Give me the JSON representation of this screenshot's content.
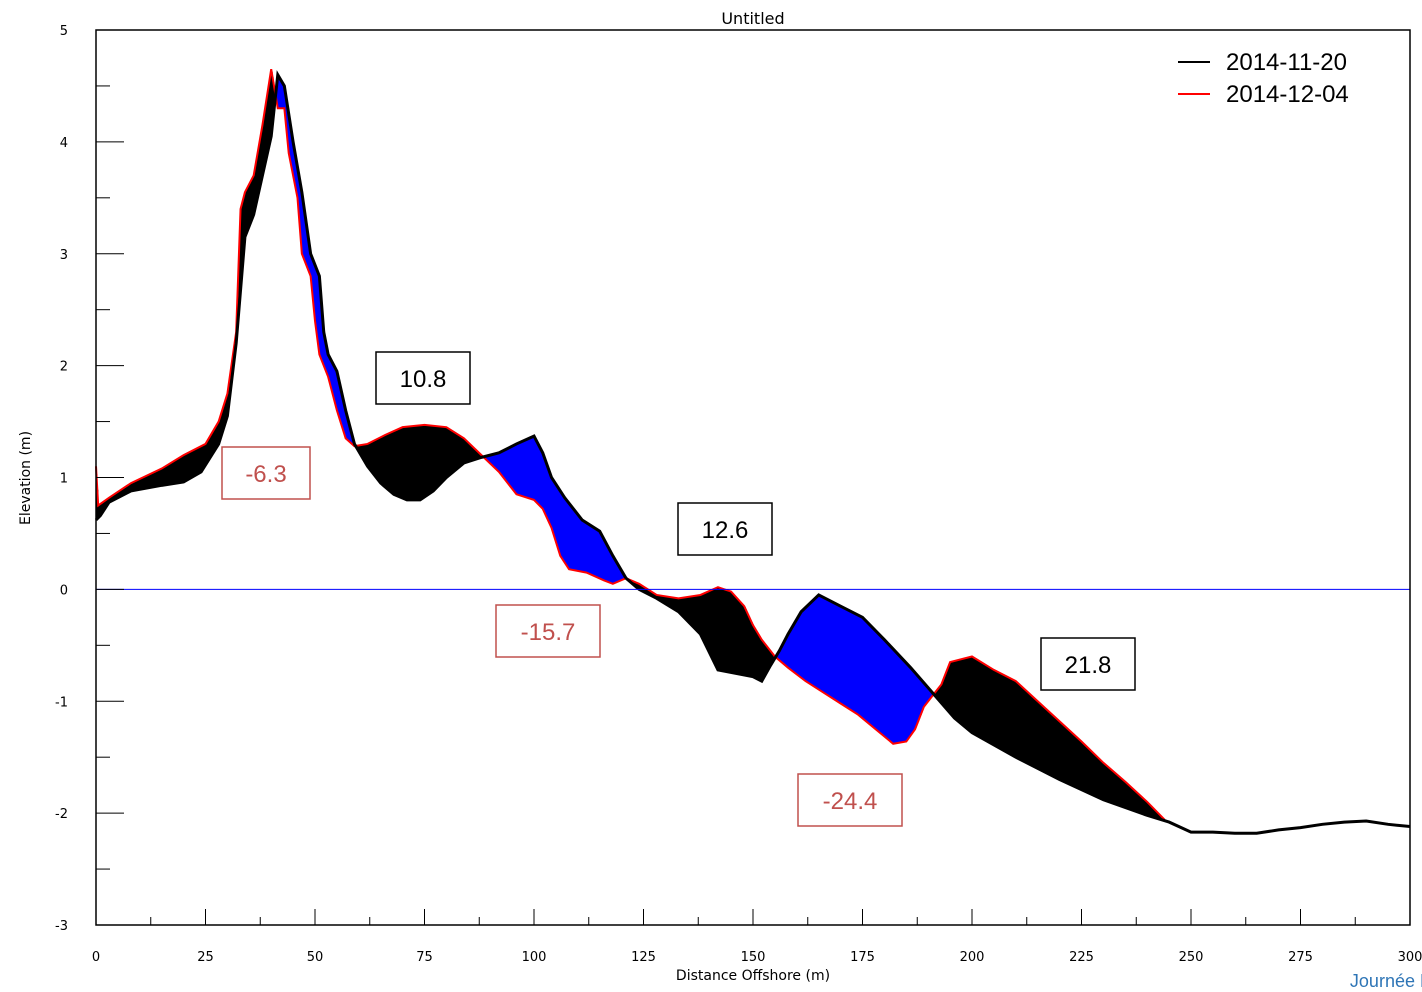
{
  "chart_data": {
    "type": "area",
    "title": "Untitled",
    "xlabel": "Distance Offshore (m)",
    "ylabel": "Elevation (m)",
    "xlim": [
      0,
      300
    ],
    "ylim": [
      -3,
      5
    ],
    "xticks": [
      "0",
      "25",
      "50",
      "75",
      "100",
      "125",
      "150",
      "175",
      "200",
      "225",
      "250",
      "275",
      "300"
    ],
    "yticks": [
      "5",
      "4",
      "3",
      "2",
      "1",
      "0",
      "-1",
      "-2",
      "-3"
    ],
    "legend_position": "top-right",
    "reference_line": {
      "y": 0,
      "color": "#0000ff"
    },
    "series": [
      {
        "name": "2014-11-20",
        "color": "#000000",
        "points": [
          [
            0,
            0.62
          ],
          [
            1,
            0.66
          ],
          [
            3,
            0.78
          ],
          [
            8,
            0.88
          ],
          [
            15,
            0.93
          ],
          [
            20,
            0.96
          ],
          [
            24,
            1.05
          ],
          [
            28,
            1.3
          ],
          [
            30,
            1.55
          ],
          [
            32,
            2.2
          ],
          [
            34,
            3.15
          ],
          [
            36,
            3.35
          ],
          [
            38,
            3.7
          ],
          [
            40,
            4.05
          ],
          [
            41.5,
            4.6
          ],
          [
            43,
            4.5
          ],
          [
            45,
            4.0
          ],
          [
            47,
            3.55
          ],
          [
            49,
            3.0
          ],
          [
            51,
            2.8
          ],
          [
            52,
            2.3
          ],
          [
            53,
            2.1
          ],
          [
            55,
            1.95
          ],
          [
            57,
            1.6
          ],
          [
            59,
            1.3
          ],
          [
            62,
            1.1
          ],
          [
            65,
            0.95
          ],
          [
            68,
            0.85
          ],
          [
            71,
            0.8
          ],
          [
            74,
            0.8
          ],
          [
            77,
            0.88
          ],
          [
            80,
            1.0
          ],
          [
            84,
            1.13
          ],
          [
            88,
            1.18
          ],
          [
            92,
            1.22
          ],
          [
            96,
            1.3
          ],
          [
            100,
            1.37
          ],
          [
            102,
            1.22
          ],
          [
            104,
            1.0
          ],
          [
            107,
            0.82
          ],
          [
            111,
            0.62
          ],
          [
            115,
            0.52
          ],
          [
            118,
            0.3
          ],
          [
            121,
            0.1
          ],
          [
            124,
            0.0
          ],
          [
            128,
            -0.08
          ],
          [
            133,
            -0.2
          ],
          [
            138,
            -0.4
          ],
          [
            142,
            -0.72
          ],
          [
            146,
            -0.75
          ],
          [
            150,
            -0.78
          ],
          [
            152,
            -0.82
          ],
          [
            154,
            -0.68
          ],
          [
            156,
            -0.55
          ],
          [
            158,
            -0.4
          ],
          [
            161,
            -0.2
          ],
          [
            165,
            -0.05
          ],
          [
            170,
            -0.15
          ],
          [
            175,
            -0.25
          ],
          [
            180,
            -0.45
          ],
          [
            186,
            -0.7
          ],
          [
            192,
            -0.97
          ],
          [
            196,
            -1.15
          ],
          [
            200,
            -1.28
          ],
          [
            210,
            -1.5
          ],
          [
            220,
            -1.7
          ],
          [
            230,
            -1.88
          ],
          [
            240,
            -2.02
          ],
          [
            245,
            -2.08
          ],
          [
            250,
            -2.17
          ],
          [
            255,
            -2.17
          ],
          [
            260,
            -2.18
          ],
          [
            265,
            -2.18
          ],
          [
            270,
            -2.15
          ],
          [
            275,
            -2.13
          ],
          [
            280,
            -2.1
          ],
          [
            285,
            -2.08
          ],
          [
            290,
            -2.07
          ],
          [
            295,
            -2.1
          ],
          [
            300,
            -2.12
          ]
        ]
      },
      {
        "name": "2014-12-04",
        "color": "#ff0000",
        "points": [
          [
            0,
            1.1
          ],
          [
            0.5,
            0.75
          ],
          [
            3,
            0.82
          ],
          [
            8,
            0.95
          ],
          [
            15,
            1.08
          ],
          [
            20,
            1.2
          ],
          [
            25,
            1.3
          ],
          [
            28,
            1.5
          ],
          [
            30,
            1.75
          ],
          [
            32,
            2.3
          ],
          [
            33,
            3.4
          ],
          [
            34,
            3.55
          ],
          [
            36,
            3.7
          ],
          [
            38,
            4.15
          ],
          [
            40,
            4.65
          ],
          [
            41.5,
            4.3
          ],
          [
            43,
            4.3
          ],
          [
            44,
            3.9
          ],
          [
            46,
            3.5
          ],
          [
            47,
            3.0
          ],
          [
            49,
            2.8
          ],
          [
            50,
            2.4
          ],
          [
            51,
            2.1
          ],
          [
            53,
            1.9
          ],
          [
            55,
            1.6
          ],
          [
            57,
            1.35
          ],
          [
            59,
            1.28
          ],
          [
            62,
            1.3
          ],
          [
            66,
            1.38
          ],
          [
            70,
            1.45
          ],
          [
            75,
            1.47
          ],
          [
            80,
            1.45
          ],
          [
            84,
            1.35
          ],
          [
            88,
            1.2
          ],
          [
            92,
            1.05
          ],
          [
            96,
            0.85
          ],
          [
            100,
            0.8
          ],
          [
            102,
            0.72
          ],
          [
            104,
            0.55
          ],
          [
            106,
            0.3
          ],
          [
            108,
            0.18
          ],
          [
            112,
            0.15
          ],
          [
            116,
            0.08
          ],
          [
            118,
            0.05
          ],
          [
            121,
            0.1
          ],
          [
            124,
            0.05
          ],
          [
            128,
            -0.05
          ],
          [
            133,
            -0.08
          ],
          [
            138,
            -0.05
          ],
          [
            142,
            0.02
          ],
          [
            145,
            -0.02
          ],
          [
            148,
            -0.15
          ],
          [
            150,
            -0.32
          ],
          [
            152,
            -0.45
          ],
          [
            155,
            -0.6
          ],
          [
            158,
            -0.7
          ],
          [
            162,
            -0.82
          ],
          [
            166,
            -0.92
          ],
          [
            170,
            -1.02
          ],
          [
            174,
            -1.12
          ],
          [
            178,
            -1.25
          ],
          [
            182,
            -1.38
          ],
          [
            185,
            -1.36
          ],
          [
            187,
            -1.25
          ],
          [
            189,
            -1.05
          ],
          [
            191,
            -0.95
          ],
          [
            193,
            -0.85
          ],
          [
            195,
            -0.65
          ],
          [
            200,
            -0.6
          ],
          [
            205,
            -0.72
          ],
          [
            210,
            -0.82
          ],
          [
            215,
            -1.0
          ],
          [
            220,
            -1.18
          ],
          [
            225,
            -1.36
          ],
          [
            230,
            -1.55
          ],
          [
            235,
            -1.72
          ],
          [
            240,
            -1.9
          ],
          [
            244,
            -2.06
          ]
        ]
      }
    ],
    "annotations": [
      {
        "label": "10.8",
        "kind": "gain",
        "text_color": "#000000",
        "border_color": "#000000"
      },
      {
        "label": "-6.3",
        "kind": "loss",
        "text_color": "#c0504d",
        "border_color": "#c0504d"
      },
      {
        "label": "12.6",
        "kind": "gain",
        "text_color": "#000000",
        "border_color": "#000000"
      },
      {
        "label": "-15.7",
        "kind": "loss",
        "text_color": "#c0504d",
        "border_color": "#c0504d"
      },
      {
        "label": "21.8",
        "kind": "gain",
        "text_color": "#000000",
        "border_color": "#000000"
      },
      {
        "label": "-24.4",
        "kind": "loss",
        "text_color": "#c0504d",
        "border_color": "#c0504d"
      }
    ],
    "fill_colors": {
      "deposition": "#000000",
      "erosion": "#0000ff"
    }
  },
  "footer_text": "Journée Dyna"
}
